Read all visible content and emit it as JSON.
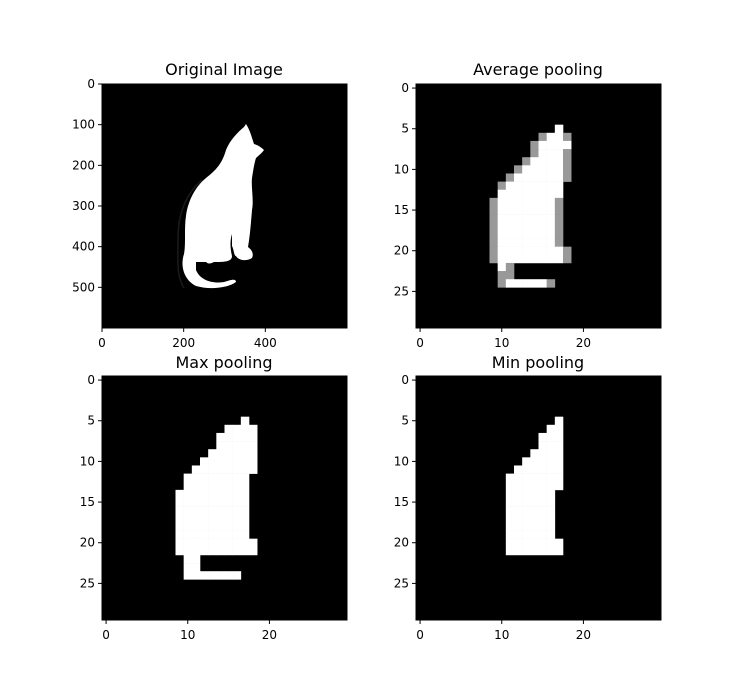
{
  "chart_data": [
    {
      "type": "image",
      "title": "Original Image",
      "colormap": "gray",
      "grid": false,
      "xlim": [
        0,
        600
      ],
      "ylim": [
        600,
        0
      ],
      "xticks": [
        "0",
        "200",
        "400"
      ],
      "yticks": [
        "0",
        "100",
        "200",
        "300",
        "400",
        "500"
      ]
    },
    {
      "type": "heatmap",
      "title": "Average pooling",
      "colormap": "gray",
      "grid": false,
      "xlim": [
        -0.5,
        29.5
      ],
      "ylim": [
        29.5,
        -0.5
      ],
      "xticks": [
        "0",
        "10",
        "20"
      ],
      "yticks": [
        "0",
        "5",
        "10",
        "15",
        "20",
        "25"
      ]
    },
    {
      "type": "heatmap",
      "title": "Max pooling",
      "colormap": "gray",
      "grid": false,
      "xlim": [
        -0.5,
        29.5
      ],
      "ylim": [
        29.5,
        -0.5
      ],
      "xticks": [
        "0",
        "10",
        "20"
      ],
      "yticks": [
        "0",
        "5",
        "10",
        "15",
        "20",
        "25"
      ]
    },
    {
      "type": "heatmap",
      "title": "Min pooling",
      "colormap": "gray",
      "grid": false,
      "xlim": [
        -0.5,
        29.5
      ],
      "ylim": [
        29.5,
        -0.5
      ],
      "xticks": [
        "0",
        "10",
        "20"
      ],
      "yticks": [
        "0",
        "5",
        "10",
        "15",
        "20",
        "25"
      ]
    }
  ]
}
